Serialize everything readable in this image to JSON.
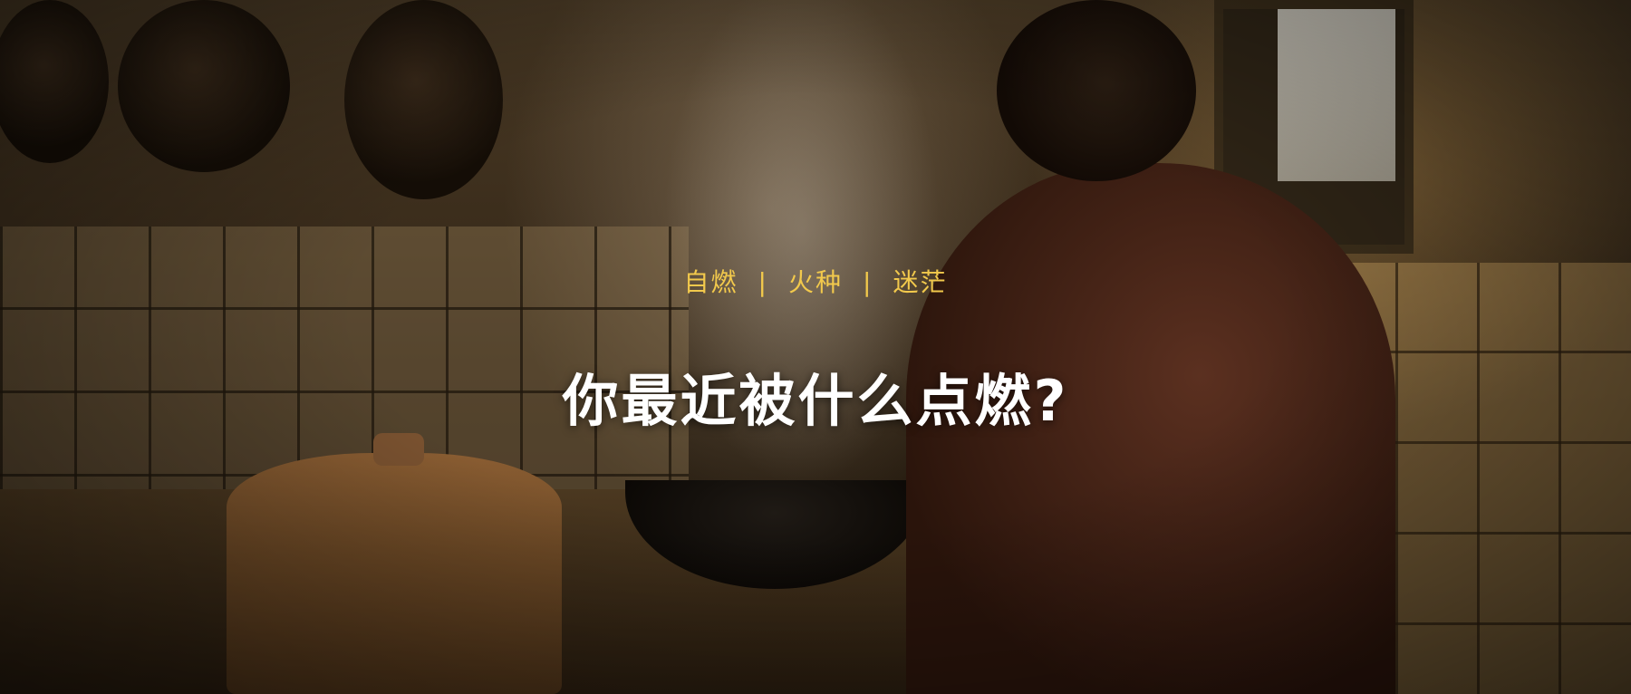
{
  "tagline": {
    "item1": "自燃",
    "separator1": "|",
    "item2": "火种",
    "separator2": "|",
    "item3": "迷茫"
  },
  "headline": "你最近被什么点燃?",
  "colors": {
    "tagline": "#f2c94c",
    "headline": "#ffffff"
  }
}
